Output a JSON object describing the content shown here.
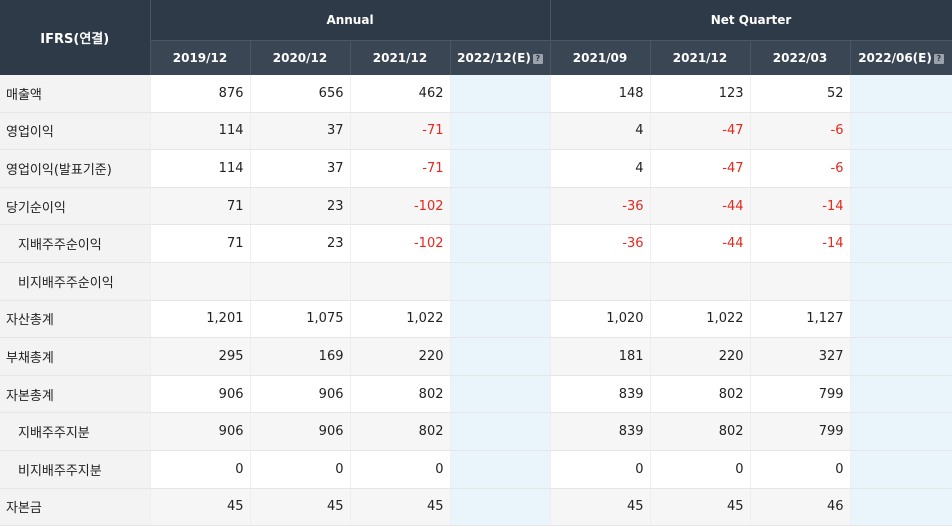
{
  "header": {
    "corner": "IFRS(연결)",
    "annual": "Annual",
    "quarter": "Net Quarter",
    "periods": [
      "2019/12",
      "2020/12",
      "2021/12",
      "2022/12(E)",
      "2021/09",
      "2021/12",
      "2022/03",
      "2022/06(E)"
    ],
    "estimate_icon": "?"
  },
  "rows": [
    {
      "label": "매출액",
      "values": [
        "876",
        "656",
        "462",
        "",
        "148",
        "123",
        "52",
        ""
      ]
    },
    {
      "label": "영업이익",
      "values": [
        "114",
        "37",
        "-71",
        "",
        "4",
        "-47",
        "-6",
        ""
      ]
    },
    {
      "label": "영업이익(발표기준)",
      "values": [
        "114",
        "37",
        "-71",
        "",
        "4",
        "-47",
        "-6",
        ""
      ]
    },
    {
      "label": "당기순이익",
      "values": [
        "71",
        "23",
        "-102",
        "",
        "-36",
        "-44",
        "-14",
        ""
      ]
    },
    {
      "label": "지배주주순이익",
      "values": [
        "71",
        "23",
        "-102",
        "",
        "-36",
        "-44",
        "-14",
        ""
      ]
    },
    {
      "label": "비지배주주순이익",
      "values": [
        "",
        "",
        "",
        "",
        "",
        "",
        "",
        ""
      ]
    },
    {
      "label": "자산총계",
      "values": [
        "1,201",
        "1,075",
        "1,022",
        "",
        "1,020",
        "1,022",
        "1,127",
        ""
      ]
    },
    {
      "label": "부채총계",
      "values": [
        "295",
        "169",
        "220",
        "",
        "181",
        "220",
        "327",
        ""
      ]
    },
    {
      "label": "자본총계",
      "values": [
        "906",
        "906",
        "802",
        "",
        "839",
        "802",
        "799",
        ""
      ]
    },
    {
      "label": "지배주주지분",
      "values": [
        "906",
        "906",
        "802",
        "",
        "839",
        "802",
        "799",
        ""
      ]
    },
    {
      "label": "비지배주주지분",
      "values": [
        "0",
        "0",
        "0",
        "",
        "0",
        "0",
        "0",
        ""
      ]
    },
    {
      "label": "자본금",
      "values": [
        "45",
        "45",
        "45",
        "",
        "45",
        "45",
        "46",
        ""
      ]
    }
  ]
}
